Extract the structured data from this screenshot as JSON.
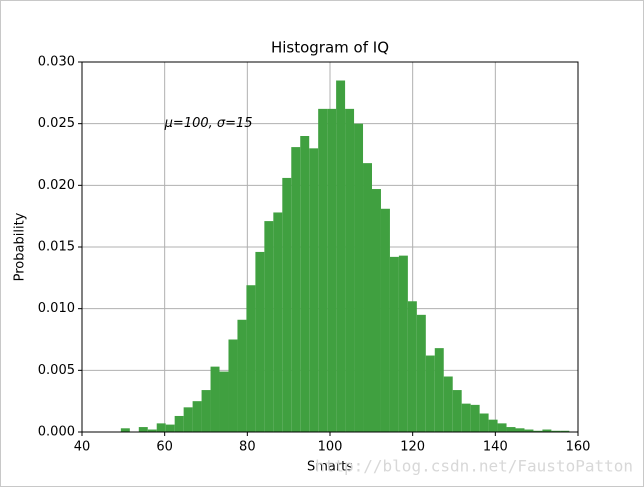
{
  "chart_data": {
    "type": "histogram",
    "title": "Histogram of IQ",
    "xlabel": "Smarts",
    "ylabel": "Probability",
    "annotation": {
      "text": "μ=100,  σ=15",
      "x": 60,
      "y": 0.025
    },
    "watermark": "http://blog.csdn.net/FaustoPatton",
    "bins": [
      49.4,
      51.57,
      53.74,
      55.91,
      58.08,
      60.25,
      62.42,
      64.59,
      66.76,
      68.93,
      71.1,
      73.27,
      75.44,
      77.61,
      79.78,
      81.95,
      84.12,
      86.29,
      88.46,
      90.63,
      92.8,
      94.97,
      97.14,
      99.31,
      101.48,
      103.65,
      105.82,
      107.99,
      110.16,
      112.33,
      114.5,
      116.67,
      118.84,
      121.01,
      123.18,
      125.35,
      127.52,
      129.69,
      131.86,
      134.03,
      136.2,
      138.37,
      140.54,
      142.71,
      144.88,
      147.05,
      149.22,
      151.39,
      153.56,
      155.73,
      157.9
    ],
    "values": [
      0.0003,
      0,
      0.0004,
      0.0002,
      0.0007,
      0.0006,
      0.0013,
      0.002,
      0.0025,
      0.0034,
      0.0053,
      0.0049,
      0.0075,
      0.0091,
      0.0119,
      0.0146,
      0.0171,
      0.0178,
      0.0206,
      0.0231,
      0.024,
      0.023,
      0.0262,
      0.0262,
      0.0285,
      0.0262,
      0.025,
      0.0218,
      0.0197,
      0.0181,
      0.0142,
      0.0143,
      0.0106,
      0.0095,
      0.0062,
      0.0068,
      0.0045,
      0.0034,
      0.0023,
      0.0022,
      0.0015,
      0.001,
      0.0007,
      0.0004,
      0.0003,
      0.0002,
      0.0001,
      0.0002,
      0.0001,
      0.0001
    ],
    "color": "#40a040",
    "xlim": [
      40,
      160
    ],
    "xticks": [
      40,
      60,
      80,
      100,
      120,
      140,
      160
    ],
    "ylim": [
      0,
      0.03
    ],
    "yticks": [
      {
        "value": 0,
        "label": "0.000"
      },
      {
        "value": 0.005,
        "label": "0.005"
      },
      {
        "value": 0.01,
        "label": "0.010"
      },
      {
        "value": 0.015,
        "label": "0.015"
      },
      {
        "value": 0.02,
        "label": "0.020"
      },
      {
        "value": 0.025,
        "label": "0.025"
      },
      {
        "value": 0.03,
        "label": "0.030"
      }
    ],
    "grid": true
  }
}
